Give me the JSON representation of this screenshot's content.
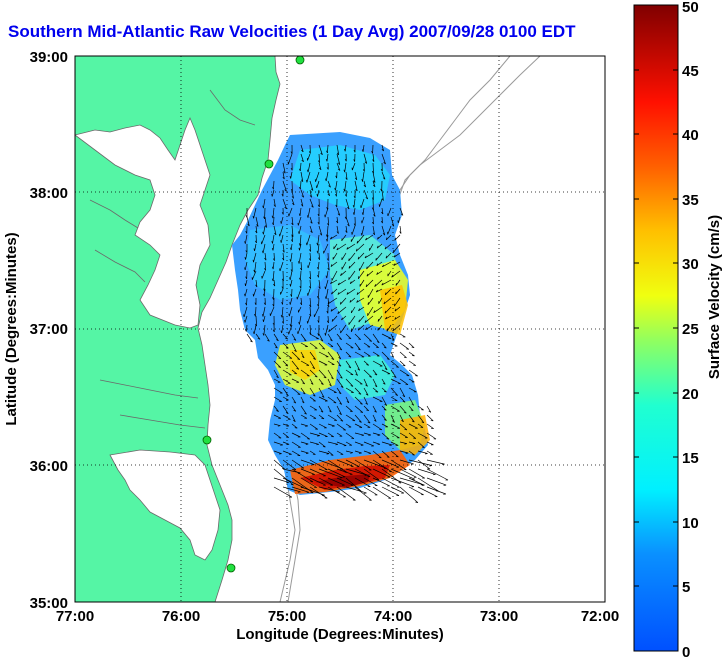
{
  "title": "Southern Mid-Atlantic Raw Velocities (1 Day Avg) 2007/09/28 0100 EDT",
  "map": {
    "x_axis_label": "Longitude (Degrees:Minutes)",
    "y_axis_label": "Latitude (Degrees:Minutes)",
    "x_ticks": [
      "77:00",
      "76:00",
      "75:00",
      "74:00",
      "73:00",
      "72:00"
    ],
    "y_ticks": [
      "39:00",
      "38:00",
      "37:00",
      "36:00",
      "35:00"
    ],
    "x_range": [
      -77,
      -72
    ],
    "y_range": [
      35,
      39
    ],
    "land_color": "#55f5a5",
    "grid": "dotted"
  },
  "colorbar": {
    "label": "Surface Velocity (cm/s)",
    "ticks": [
      "0",
      "5",
      "10",
      "15",
      "20",
      "25",
      "30",
      "35",
      "40",
      "45",
      "50"
    ],
    "range": [
      0,
      50
    ],
    "colormap": "jet"
  }
}
